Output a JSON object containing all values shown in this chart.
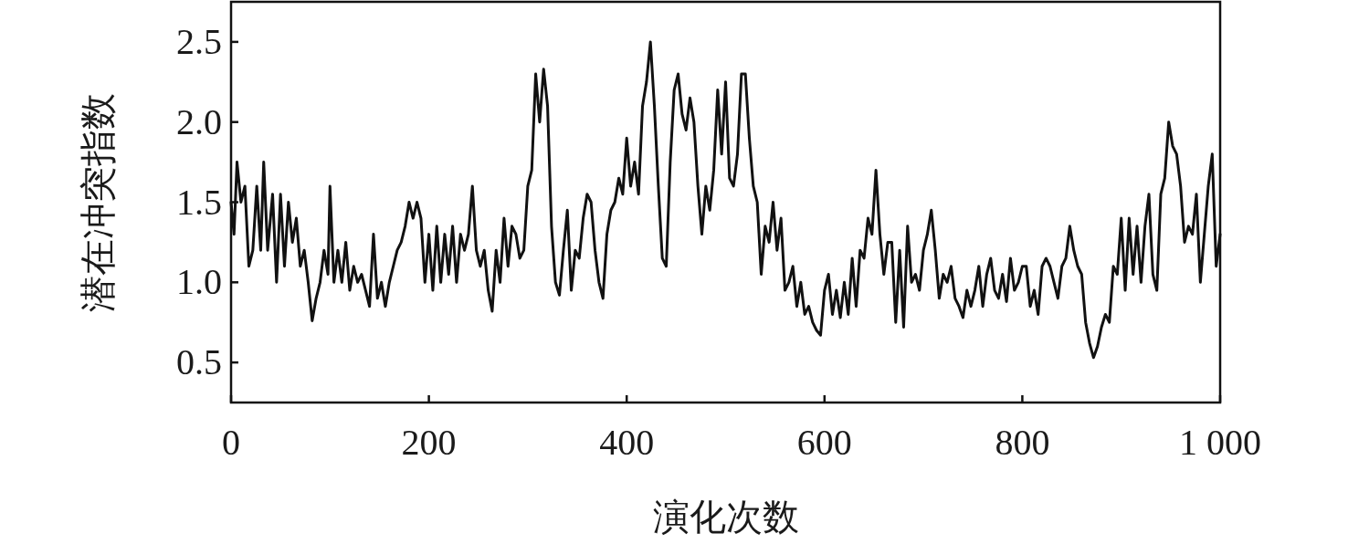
{
  "chart_data": {
    "type": "line",
    "xlabel": "演化次数",
    "ylabel": "潜在冲突指数",
    "xlim": [
      0,
      1000
    ],
    "ylim": [
      0.25,
      2.75
    ],
    "xticks": [
      0,
      200,
      400,
      600,
      800,
      {
        "value": 1000,
        "label": "1 000"
      }
    ],
    "yticks": [
      {
        "value": 0.5,
        "label": "0.5"
      },
      {
        "value": 1.0,
        "label": "1.0"
      },
      {
        "value": 1.5,
        "label": "1.5"
      },
      {
        "value": 2.0,
        "label": "2.0"
      },
      {
        "value": 2.5,
        "label": "2.5"
      }
    ],
    "grid": false,
    "marker": "none",
    "line_style": "solid",
    "series": [
      {
        "color": "#111111",
        "x": [
          0,
          3,
          6,
          10,
          14,
          18,
          22,
          26,
          30,
          33,
          37,
          42,
          46,
          50,
          54,
          58,
          62,
          66,
          70,
          74,
          78,
          82,
          86,
          90,
          94,
          98,
          100,
          104,
          108,
          112,
          116,
          120,
          124,
          128,
          132,
          136,
          140,
          144,
          148,
          152,
          156,
          160,
          164,
          168,
          172,
          176,
          180,
          184,
          188,
          192,
          196,
          200,
          204,
          208,
          212,
          216,
          220,
          224,
          228,
          232,
          236,
          240,
          244,
          248,
          252,
          256,
          260,
          264,
          268,
          272,
          276,
          280,
          284,
          288,
          292,
          296,
          300,
          304,
          308,
          312,
          316,
          320,
          324,
          328,
          332,
          336,
          340,
          344,
          348,
          352,
          356,
          360,
          364,
          368,
          372,
          376,
          380,
          384,
          388,
          392,
          396,
          400,
          404,
          408,
          412,
          416,
          420,
          424,
          428,
          432,
          436,
          440,
          444,
          448,
          452,
          456,
          460,
          464,
          468,
          472,
          476,
          480,
          484,
          488,
          492,
          496,
          500,
          504,
          508,
          512,
          516,
          520,
          524,
          528,
          532,
          536,
          540,
          544,
          548,
          552,
          556,
          560,
          564,
          568,
          572,
          576,
          580,
          584,
          588,
          592,
          596,
          600,
          604,
          608,
          612,
          616,
          620,
          624,
          628,
          632,
          636,
          640,
          644,
          648,
          652,
          656,
          660,
          664,
          668,
          672,
          676,
          680,
          684,
          688,
          692,
          696,
          700,
          704,
          708,
          712,
          716,
          720,
          724,
          728,
          732,
          736,
          740,
          744,
          748,
          752,
          756,
          760,
          764,
          768,
          772,
          776,
          780,
          784,
          788,
          792,
          796,
          800,
          804,
          808,
          812,
          816,
          820,
          824,
          828,
          832,
          836,
          840,
          844,
          848,
          852,
          856,
          860,
          864,
          868,
          872,
          876,
          880,
          884,
          888,
          892,
          896,
          900,
          904,
          908,
          912,
          916,
          920,
          924,
          928,
          932,
          936,
          940,
          944,
          948,
          952,
          956,
          960,
          964,
          968,
          972,
          976,
          980,
          984,
          988,
          992,
          996,
          1000
        ],
        "values": [
          1.5,
          1.3,
          1.75,
          1.5,
          1.6,
          1.1,
          1.2,
          1.6,
          1.2,
          1.75,
          1.2,
          1.55,
          1.0,
          1.55,
          1.1,
          1.5,
          1.25,
          1.4,
          1.1,
          1.2,
          1.0,
          0.76,
          0.9,
          1.0,
          1.2,
          1.05,
          1.6,
          1.0,
          1.2,
          1.0,
          1.25,
          0.95,
          1.1,
          1.0,
          1.05,
          0.95,
          0.85,
          1.3,
          0.9,
          1.0,
          0.85,
          1.0,
          1.1,
          1.2,
          1.25,
          1.35,
          1.5,
          1.4,
          1.5,
          1.4,
          1.0,
          1.3,
          0.95,
          1.35,
          1.0,
          1.3,
          1.05,
          1.35,
          1.0,
          1.3,
          1.2,
          1.3,
          1.6,
          1.2,
          1.1,
          1.2,
          0.95,
          0.82,
          1.2,
          1.0,
          1.4,
          1.1,
          1.35,
          1.3,
          1.15,
          1.2,
          1.6,
          1.7,
          2.3,
          2.0,
          2.33,
          2.1,
          1.35,
          1.0,
          0.92,
          1.2,
          1.45,
          0.95,
          1.2,
          1.15,
          1.4,
          1.55,
          1.5,
          1.2,
          1.0,
          0.9,
          1.3,
          1.45,
          1.5,
          1.65,
          1.55,
          1.9,
          1.6,
          1.75,
          1.55,
          2.1,
          2.25,
          2.5,
          2.1,
          1.6,
          1.15,
          1.1,
          1.75,
          2.2,
          2.3,
          2.05,
          1.95,
          2.15,
          2.0,
          1.6,
          1.3,
          1.6,
          1.45,
          1.7,
          2.2,
          1.8,
          2.25,
          1.65,
          1.6,
          1.8,
          2.3,
          2.3,
          1.9,
          1.6,
          1.5,
          1.05,
          1.35,
          1.25,
          1.5,
          1.2,
          1.4,
          0.95,
          1.0,
          1.1,
          0.85,
          1.0,
          0.8,
          0.85,
          0.75,
          0.7,
          0.67,
          0.95,
          1.05,
          0.8,
          0.95,
          0.78,
          1.0,
          0.8,
          1.15,
          0.85,
          1.2,
          1.15,
          1.4,
          1.3,
          1.7,
          1.3,
          1.05,
          1.25,
          1.25,
          0.75,
          1.2,
          0.72,
          1.35,
          1.0,
          1.05,
          0.95,
          1.2,
          1.3,
          1.45,
          1.2,
          0.9,
          1.05,
          1.0,
          1.1,
          0.9,
          0.85,
          0.78,
          0.95,
          0.85,
          0.95,
          1.1,
          0.85,
          1.05,
          1.15,
          0.95,
          0.9,
          1.05,
          0.88,
          1.15,
          0.95,
          1.0,
          1.1,
          1.1,
          0.85,
          0.95,
          0.8,
          1.1,
          1.15,
          1.1,
          1.0,
          0.9,
          1.1,
          1.15,
          1.35,
          1.2,
          1.1,
          1.05,
          0.75,
          0.62,
          0.53,
          0.6,
          0.72,
          0.8,
          0.75,
          1.1,
          1.05,
          1.4,
          0.95,
          1.4,
          1.05,
          1.35,
          1.0,
          1.35,
          1.55,
          1.05,
          0.95,
          1.55,
          1.65,
          2.0,
          1.85,
          1.8,
          1.6,
          1.25,
          1.35,
          1.3,
          1.55,
          1.0,
          1.3,
          1.6,
          1.8,
          1.1,
          1.3
        ]
      }
    ]
  }
}
